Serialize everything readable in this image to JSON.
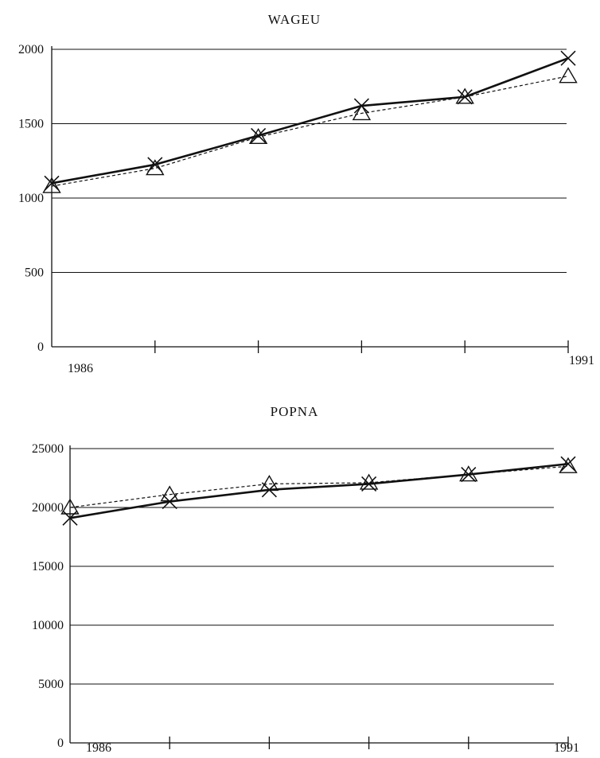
{
  "chart_data": [
    {
      "type": "line",
      "title": "WAGEU",
      "x": [
        1986,
        1987,
        1988,
        1989,
        1990,
        1991
      ],
      "x_tick_labels": [
        "1986",
        "1991"
      ],
      "y_tick_labels": [
        "0",
        "500",
        "1000",
        "1500",
        "2000"
      ],
      "ylim": [
        0,
        2000
      ],
      "grid": true,
      "series": [
        {
          "style": "solid",
          "marker": "x",
          "values": [
            1100,
            1225,
            1420,
            1620,
            1680,
            1940
          ]
        },
        {
          "style": "dashed",
          "marker": "triangle",
          "values": [
            1080,
            1200,
            1410,
            1570,
            1680,
            1820
          ]
        }
      ]
    },
    {
      "type": "line",
      "title": "POPNA",
      "x": [
        1986,
        1987,
        1988,
        1989,
        1990,
        1991
      ],
      "x_tick_labels": [
        "1986",
        "1991"
      ],
      "y_tick_labels": [
        "0",
        "5000",
        "10000",
        "15000",
        "20000",
        "25000"
      ],
      "ylim": [
        0,
        25000
      ],
      "grid": true,
      "series": [
        {
          "style": "solid",
          "marker": "x",
          "values": [
            19100,
            20500,
            21500,
            22000,
            22800,
            23700
          ]
        },
        {
          "style": "dashed",
          "marker": "triangle",
          "values": [
            20000,
            21100,
            22000,
            22100,
            22800,
            23500
          ]
        }
      ]
    }
  ]
}
